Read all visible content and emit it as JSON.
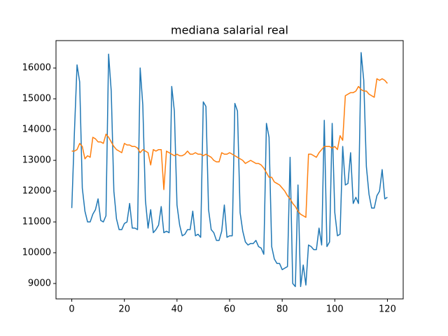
{
  "chart_data": {
    "type": "line",
    "title": "mediana salarial real",
    "x": [
      0,
      1,
      2,
      3,
      4,
      5,
      6,
      7,
      8,
      9,
      10,
      11,
      12,
      13,
      14,
      15,
      16,
      17,
      18,
      19,
      20,
      21,
      22,
      23,
      24,
      25,
      26,
      27,
      28,
      29,
      30,
      31,
      32,
      33,
      34,
      35,
      36,
      37,
      38,
      39,
      40,
      41,
      42,
      43,
      44,
      45,
      46,
      47,
      48,
      49,
      50,
      51,
      52,
      53,
      54,
      55,
      56,
      57,
      58,
      59,
      60,
      61,
      62,
      63,
      64,
      65,
      66,
      67,
      68,
      69,
      70,
      71,
      72,
      73,
      74,
      75,
      76,
      77,
      78,
      79,
      80,
      81,
      82,
      83,
      84,
      85,
      86,
      87,
      88,
      89,
      90,
      91,
      92,
      93,
      94,
      95,
      96,
      97,
      98,
      99,
      100,
      101,
      102,
      103,
      104,
      105,
      106,
      107,
      108,
      109,
      110,
      111,
      112,
      113,
      114,
      115,
      116,
      117,
      118,
      119,
      120
    ],
    "series": [
      {
        "color": "#1f77b4",
        "values": [
          11450,
          13900,
          16100,
          15550,
          12100,
          11350,
          11000,
          11000,
          11250,
          11400,
          11750,
          11050,
          11000,
          11200,
          16450,
          15250,
          12000,
          11100,
          10750,
          10750,
          10950,
          11000,
          11600,
          10800,
          10800,
          10750,
          16000,
          14800,
          11700,
          10800,
          11400,
          10650,
          10750,
          10900,
          11500,
          10650,
          10700,
          10650,
          15400,
          14600,
          11550,
          10900,
          10550,
          10600,
          10750,
          10750,
          11350,
          10550,
          10600,
          10500,
          14900,
          14750,
          11400,
          10750,
          10650,
          10400,
          10400,
          10700,
          11550,
          10500,
          10550,
          10550,
          14850,
          14600,
          11300,
          10700,
          10350,
          10250,
          10300,
          10300,
          10400,
          10200,
          10150,
          9950,
          14200,
          13750,
          10200,
          9800,
          9650,
          9650,
          9450,
          9500,
          9550,
          13100,
          9000,
          8900,
          12200,
          8900,
          9600,
          8950,
          10250,
          10200,
          10100,
          10100,
          10800,
          10250,
          14300,
          10200,
          10350,
          14200,
          11300,
          10550,
          10600,
          13450,
          12200,
          12250,
          13250,
          11600,
          11800,
          11600,
          16500,
          15600,
          12800,
          11900,
          11450,
          11450,
          11850,
          12000,
          12700,
          11750,
          11800
        ]
      },
      {
        "color": "#ff7f0e",
        "values": [
          13300,
          13300,
          13350,
          13550,
          13450,
          13050,
          13150,
          13100,
          13750,
          13700,
          13600,
          13600,
          13550,
          13850,
          13750,
          13600,
          13450,
          13350,
          13300,
          13250,
          13550,
          13500,
          13500,
          13450,
          13450,
          13400,
          13250,
          13350,
          13300,
          13250,
          12850,
          13350,
          13300,
          13350,
          13350,
          12050,
          13300,
          13250,
          13200,
          13150,
          13200,
          13150,
          13150,
          13200,
          13300,
          13200,
          13200,
          13250,
          13200,
          13200,
          13150,
          13200,
          13150,
          13100,
          13000,
          12950,
          12950,
          13250,
          13200,
          13200,
          13250,
          13200,
          13150,
          13100,
          13050,
          13000,
          12900,
          12950,
          13000,
          12950,
          12900,
          12900,
          12850,
          12750,
          12600,
          12450,
          12450,
          12300,
          12250,
          12200,
          12100,
          12000,
          11850,
          11750,
          11600,
          11500,
          11350,
          11250,
          11200,
          11150,
          13200,
          13200,
          13150,
          13100,
          13250,
          13350,
          13450,
          13450,
          13450,
          13400,
          13450,
          13350,
          13800,
          13650,
          15100,
          15150,
          15200,
          15200,
          15250,
          15400,
          15300,
          15250,
          15250,
          15150,
          15100,
          15050,
          15650,
          15600,
          15650,
          15600,
          15500
        ]
      }
    ],
    "xlim": [
      -6,
      126
    ],
    "xticks": [
      0,
      20,
      40,
      60,
      80,
      100,
      120
    ],
    "ylim": [
      8500,
      16890
    ],
    "yticks": [
      9000,
      10000,
      11000,
      12000,
      13000,
      14000,
      15000,
      16000
    ],
    "grid": false
  }
}
